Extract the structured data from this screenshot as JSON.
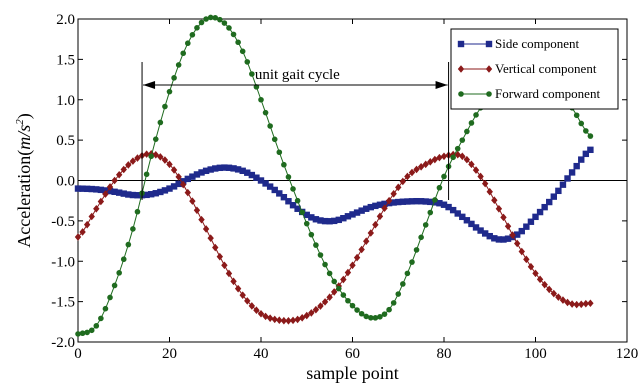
{
  "chart_data": {
    "type": "line",
    "xlabel": "sample point",
    "ylabel": "Acceleration(m/s²)",
    "ylabel_parts": {
      "prefix": "Acceleration(",
      "unit_base": "m/s",
      "unit_exp": "2",
      "suffix": ")"
    },
    "xlim": [
      0,
      120
    ],
    "ylim": [
      -2.0,
      2.0
    ],
    "x_ticks": [
      0,
      20,
      40,
      60,
      80,
      100,
      120
    ],
    "y_ticks": [
      -2.0,
      -1.5,
      -1.0,
      -0.5,
      0.0,
      0.5,
      1.0,
      1.5,
      2.0
    ],
    "x_tick_labels": [
      "0",
      "20",
      "40",
      "60",
      "80",
      "100",
      "120"
    ],
    "y_tick_labels": [
      "-2.0",
      "-1.5",
      "-1.0",
      "-0.5",
      "0.0",
      "0.5",
      "1.0",
      "1.5",
      "2.0"
    ],
    "legend_position": "top-right",
    "zero_line": true,
    "annotation": {
      "text": "unit gait cycle",
      "x_start": 14,
      "x_end": 81
    },
    "series": [
      {
        "name": "Side component",
        "color": "#1f2a8c",
        "marker": "square",
        "x": [
          0,
          4,
          8,
          12,
          16,
          20,
          24,
          28,
          32,
          36,
          40,
          44,
          48,
          52,
          56,
          60,
          64,
          68,
          72,
          76,
          80,
          84,
          88,
          92,
          96,
          100,
          104,
          108,
          112
        ],
        "y": [
          -0.1,
          -0.11,
          -0.14,
          -0.18,
          -0.17,
          -0.1,
          0.02,
          0.12,
          0.16,
          0.12,
          0.0,
          -0.16,
          -0.35,
          -0.48,
          -0.5,
          -0.42,
          -0.33,
          -0.28,
          -0.26,
          -0.26,
          -0.3,
          -0.45,
          -0.62,
          -0.73,
          -0.67,
          -0.45,
          -0.2,
          0.1,
          0.38
        ]
      },
      {
        "name": "Vertical component",
        "color": "#8b1a1a",
        "marker": "diamond",
        "x": [
          0,
          4,
          8,
          12,
          16,
          20,
          24,
          28,
          32,
          36,
          40,
          44,
          48,
          52,
          56,
          60,
          64,
          68,
          72,
          76,
          80,
          84,
          88,
          92,
          96,
          100,
          104,
          108,
          112
        ],
        "y": [
          -0.7,
          -0.35,
          0.0,
          0.24,
          0.33,
          0.2,
          -0.15,
          -0.6,
          -1.05,
          -1.42,
          -1.65,
          -1.73,
          -1.72,
          -1.6,
          -1.38,
          -1.05,
          -0.65,
          -0.25,
          0.05,
          0.2,
          0.3,
          0.3,
          0.05,
          -0.35,
          -0.78,
          -1.15,
          -1.4,
          -1.53,
          -1.52
        ]
      },
      {
        "name": "Forward component",
        "color": "#1f6b1f",
        "marker": "circle",
        "x": [
          0,
          4,
          8,
          12,
          16,
          20,
          24,
          28,
          32,
          36,
          40,
          44,
          48,
          52,
          56,
          60,
          64,
          68,
          72,
          76,
          80,
          84,
          88,
          92,
          96,
          100,
          104,
          108,
          112
        ],
        "y": [
          -1.9,
          -1.8,
          -1.3,
          -0.6,
          0.3,
          1.1,
          1.7,
          2.0,
          1.95,
          1.6,
          1.0,
          0.35,
          -0.25,
          -0.8,
          -1.25,
          -1.55,
          -1.7,
          -1.6,
          -1.15,
          -0.55,
          0.05,
          0.5,
          0.9,
          1.15,
          1.3,
          1.35,
          1.2,
          0.9,
          0.55
        ]
      }
    ]
  }
}
